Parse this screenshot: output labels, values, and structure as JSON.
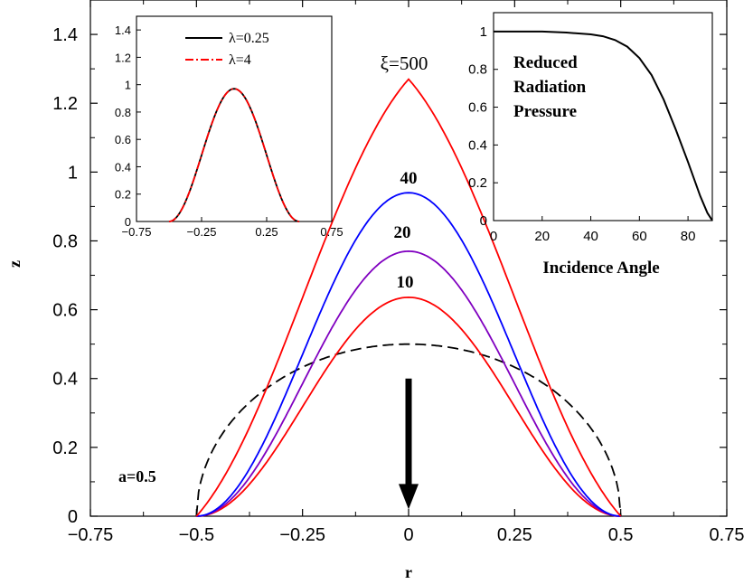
{
  "chart_data": [
    {
      "type": "line",
      "title": "",
      "xlabel": "r",
      "ylabel": "z",
      "xlim": [
        -0.75,
        0.75
      ],
      "ylim": [
        0,
        1.5
      ],
      "xticks": [
        "−0.75",
        "−0.5",
        "−0.25",
        "0",
        "0.25",
        "0.5",
        "0.75"
      ],
      "yticks": [
        "0",
        "0.2",
        "0.4",
        "0.6",
        "0.8",
        "1",
        "1.2",
        "1.4"
      ],
      "annotations": {
        "xi": "ξ=500",
        "c40": "40",
        "c20": "20",
        "c10": "10",
        "a": "a=0.5"
      },
      "series": [
        {
          "color": "#000000",
          "style": "dashed",
          "kind": "semicircle",
          "peak": 0.5
        },
        {
          "color": "#ff0000",
          "style": "solid",
          "peak": 0.636,
          "shape": "cosine"
        },
        {
          "color": "#8000c0",
          "style": "solid",
          "peak": 0.77,
          "shape": "cosine"
        },
        {
          "color": "#0000ff",
          "style": "solid",
          "peak": 0.94,
          "shape": "cosine"
        },
        {
          "color": "#ff0000",
          "style": "solid",
          "peak": 1.27,
          "shape": "cone"
        }
      ],
      "arrow": {
        "x": 0,
        "y_from": 0.4,
        "y_to": 0.02
      }
    },
    {
      "type": "line",
      "xlim": [
        -0.75,
        0.75
      ],
      "ylim": [
        0,
        1.5
      ],
      "xticks": [
        "−0.75",
        "−0.25",
        "0.25",
        "0.75"
      ],
      "yticks": [
        "0",
        "0.2",
        "0.4",
        "0.6",
        "0.8",
        "1",
        "1.2",
        "1.4"
      ],
      "series": [
        {
          "name": "λ=0.25",
          "color": "#000000",
          "style": "solid",
          "peak": 0.97
        },
        {
          "name": "λ=4",
          "color": "#ff0000",
          "style": "dash-dot",
          "peak": 0.97
        }
      ]
    },
    {
      "type": "line",
      "xlabel": "Incidence Angle",
      "xlim": [
        0,
        90
      ],
      "ylim": [
        0,
        1.1
      ],
      "xticks": [
        "0",
        "20",
        "40",
        "60",
        "80"
      ],
      "yticks": [
        "0",
        "0.2",
        "0.4",
        "0.6",
        "0.8",
        "1"
      ],
      "text_lines": [
        "Reduced",
        "Radiation",
        "Pressure"
      ],
      "series": [
        {
          "color": "#000000",
          "style": "solid",
          "x": [
            0,
            20,
            30,
            40,
            45,
            50,
            55,
            60,
            65,
            70,
            75,
            80,
            85,
            88,
            90
          ],
          "y": [
            1.0,
            1.0,
            0.995,
            0.985,
            0.975,
            0.955,
            0.92,
            0.86,
            0.77,
            0.64,
            0.48,
            0.31,
            0.13,
            0.04,
            0.0
          ]
        }
      ]
    }
  ]
}
